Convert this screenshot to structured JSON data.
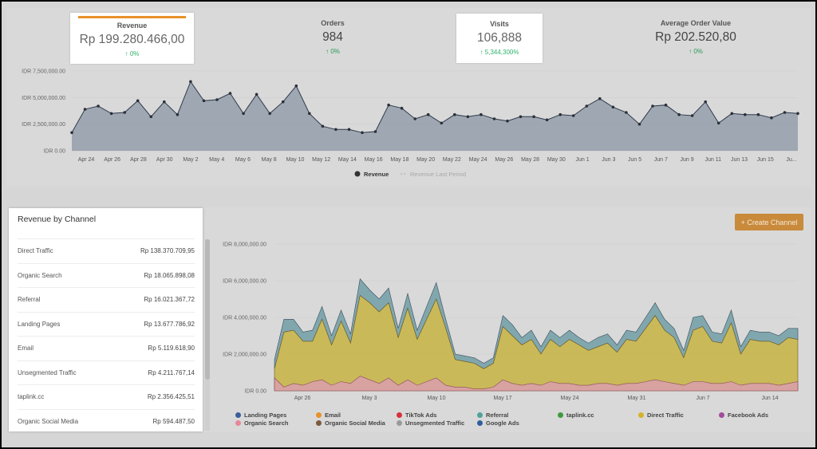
{
  "kpis": [
    {
      "key": "revenue",
      "label": "Revenue",
      "value": "Rp 199.280.466,00",
      "change": "0%"
    },
    {
      "key": "orders",
      "label": "Orders",
      "value": "984",
      "change": "0%"
    },
    {
      "key": "visits",
      "label": "Visits",
      "value": "106,888",
      "change": "5,344,300%"
    },
    {
      "key": "aov",
      "label": "Average Order Value",
      "value": "Rp 202.520,80",
      "change": "0%"
    }
  ],
  "revenue_chart": {
    "y_ticks": [
      "IDR 7,500,000.00",
      "IDR 5,000,000.00",
      "IDR 2,500,000.00",
      "IDR 0.00"
    ],
    "y_tick_values": [
      7500000,
      5000000,
      2500000,
      0
    ],
    "x_ticks": [
      "Apr 24",
      "Apr 26",
      "Apr 28",
      "Apr 30",
      "May 2",
      "May 4",
      "May 6",
      "May 8",
      "May 10",
      "May 12",
      "May 14",
      "May 16",
      "May 18",
      "May 20",
      "May 22",
      "May 24",
      "May 26",
      "May 28",
      "May 30",
      "Jun 1",
      "Jun 3",
      "Jun 5",
      "Jun 7",
      "Jun 9",
      "Jun 11",
      "Jun 13",
      "Jun 15",
      "Ju..."
    ],
    "values": [
      1700000,
      3900000,
      4200000,
      3500000,
      3600000,
      4700000,
      3200000,
      4600000,
      3400000,
      6500000,
      4700000,
      4800000,
      5400000,
      3500000,
      5300000,
      3500000,
      4600000,
      6100000,
      3500000,
      2300000,
      2000000,
      2000000,
      1700000,
      1800000,
      4300000,
      4000000,
      3000000,
      3400000,
      2600000,
      3400000,
      3200000,
      3400000,
      3000000,
      2800000,
      3200000,
      3200000,
      2900000,
      3400000,
      3300000,
      4200000,
      4900000,
      4100000,
      3600000,
      2500000,
      4200000,
      4300000,
      3400000,
      3300000,
      4600000,
      2600000,
      3500000,
      3400000,
      3400000,
      3100000,
      3600000,
      3500000
    ],
    "legend": [
      {
        "label": "Revenue",
        "color": "#333333"
      },
      {
        "label": "Revenue Last Period",
        "color": "#aaaaaa"
      }
    ]
  },
  "channel_card": {
    "title": "Revenue by Channel",
    "rows": [
      {
        "name": "Direct Traffic",
        "amount": "Rp 138.370.709,95"
      },
      {
        "name": "Organic Search",
        "amount": "Rp 18.065.898,08"
      },
      {
        "name": "Referral",
        "amount": "Rp 16.021.367,72"
      },
      {
        "name": "Landing Pages",
        "amount": "Rp 13.677.786,92"
      },
      {
        "name": "Email",
        "amount": "Rp 5.119.618,90"
      },
      {
        "name": "Unsegmented Traffic",
        "amount": "Rp 4.211.767,14"
      },
      {
        "name": "taplink.cc",
        "amount": "Rp 2.356.425,51"
      },
      {
        "name": "Organic Social Media",
        "amount": "Rp 594.487,50"
      }
    ]
  },
  "create_button": {
    "label": "+ Create Channel"
  },
  "channel_chart": {
    "y_ticks": [
      "IDR 8,000,000.00",
      "IDR 6,000,000.00",
      "IDR 4,000,000.00",
      "IDR 2,000,000.00",
      "IDR 0.00"
    ],
    "y_tick_values": [
      8000000,
      6000000,
      4000000,
      2000000,
      0
    ],
    "x_ticks": [
      "Apr 26",
      "May 3",
      "May 10",
      "May 17",
      "May 24",
      "May 31",
      "Jun 7",
      "Jun 14"
    ],
    "direct": [
      1200000,
      3200000,
      3300000,
      2700000,
      2700000,
      3900000,
      2500000,
      3800000,
      2600000,
      5200000,
      4800000,
      4300000,
      4800000,
      2900000,
      4500000,
      2800000,
      3900000,
      5000000,
      3400000,
      1700000,
      1600000,
      1500000,
      1200000,
      1500000,
      3500000,
      3000000,
      2500000,
      2800000,
      2000000,
      2800000,
      2400000,
      2800000,
      2500000,
      2200000,
      2400000,
      2600000,
      2100000,
      2800000,
      2700000,
      3400000,
      4100000,
      3300000,
      2900000,
      1800000,
      3300000,
      3500000,
      2700000,
      2600000,
      3700000,
      2000000,
      2800000,
      2700000,
      2700000,
      2500000,
      2900000,
      2800000
    ],
    "other": [
      500000,
      700000,
      600000,
      500000,
      600000,
      700000,
      500000,
      600000,
      500000,
      900000,
      700000,
      700000,
      800000,
      500000,
      800000,
      500000,
      700000,
      900000,
      500000,
      300000,
      300000,
      300000,
      300000,
      300000,
      600000,
      600000,
      400000,
      500000,
      400000,
      500000,
      500000,
      500000,
      400000,
      400000,
      500000,
      500000,
      400000,
      500000,
      500000,
      600000,
      700000,
      600000,
      500000,
      400000,
      700000,
      600000,
      500000,
      500000,
      700000,
      400000,
      500000,
      500000,
      500000,
      500000,
      500000,
      600000
    ],
    "pink": [
      700000,
      200000,
      400000,
      300000,
      500000,
      600000,
      300000,
      500000,
      400000,
      800000,
      600000,
      400000,
      700000,
      300000,
      600000,
      300000,
      500000,
      700000,
      300000,
      200000,
      200000,
      100000,
      100000,
      200000,
      600000,
      400000,
      300000,
      400000,
      300000,
      500000,
      400000,
      400000,
      300000,
      300000,
      400000,
      400000,
      300000,
      400000,
      400000,
      500000,
      600000,
      500000,
      400000,
      300000,
      500000,
      500000,
      400000,
      400000,
      500000,
      300000,
      400000,
      400000,
      400000,
      300000,
      400000,
      500000
    ],
    "legend": [
      {
        "label": "Landing Pages",
        "color": "#3b5e9c"
      },
      {
        "label": "Email",
        "color": "#e8912a"
      },
      {
        "label": "TikTok Ads",
        "color": "#d6313d"
      },
      {
        "label": "Referral",
        "color": "#4fa39c"
      },
      {
        "label": "taplink.cc",
        "color": "#3e9a3e"
      },
      {
        "label": "Direct Traffic",
        "color": "#d4b32a"
      },
      {
        "label": "Facebook Ads",
        "color": "#a34c9c"
      },
      {
        "label": "Organic Search",
        "color": "#e8879a"
      },
      {
        "label": "Organic Social Media",
        "color": "#7b5a3e"
      },
      {
        "label": "Unsegmented Traffic",
        "color": "#9a9a9a"
      },
      {
        "label": "Google Ads",
        "color": "#2f5f9c"
      }
    ]
  },
  "chart_data": [
    {
      "type": "area",
      "ylabel": "",
      "ylim": [
        0,
        7500000
      ],
      "series": [
        {
          "name": "Revenue"
        },
        {
          "name": "Revenue Last Period"
        }
      ]
    },
    {
      "type": "area",
      "ylim": [
        0,
        8000000
      ],
      "series": [
        {
          "name": "Direct Traffic"
        },
        {
          "name": "Organic Search"
        }
      ]
    }
  ]
}
